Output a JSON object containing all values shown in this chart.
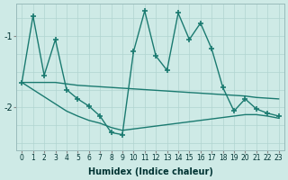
{
  "xlabel": "Humidex (Indice chaleur)",
  "bg_color": "#ceeae6",
  "line_color": "#1a7a70",
  "grid_color_v": "#b0d4d0",
  "grid_color_h": "#b0d4d0",
  "x_ticks": [
    0,
    1,
    2,
    3,
    4,
    5,
    6,
    7,
    8,
    9,
    10,
    11,
    12,
    13,
    14,
    15,
    16,
    17,
    18,
    19,
    20,
    21,
    22,
    23
  ],
  "y_ticks": [
    -1,
    -2
  ],
  "ylim": [
    -2.6,
    -0.55
  ],
  "xlim": [
    -0.5,
    23.5
  ],
  "line1_x": [
    0,
    1,
    2,
    3,
    4,
    5,
    6,
    7,
    8,
    9,
    10,
    11,
    12,
    13,
    14,
    15,
    16,
    17,
    18,
    19,
    20,
    21,
    22,
    23
  ],
  "line1_y": [
    -1.65,
    -0.72,
    -1.55,
    -1.05,
    -1.75,
    -1.88,
    -1.98,
    -2.12,
    -2.35,
    -2.38,
    -1.22,
    -0.65,
    -1.28,
    -1.48,
    -0.68,
    -1.05,
    -0.82,
    -1.18,
    -1.72,
    -2.05,
    -1.88,
    -2.02,
    -2.08,
    -2.12
  ],
  "line2_x": [
    0,
    1,
    2,
    3,
    4,
    5,
    6,
    7,
    8,
    9,
    10,
    11,
    12,
    13,
    14,
    15,
    16,
    17,
    18,
    19,
    20,
    21,
    22,
    23
  ],
  "line2_y": [
    -1.65,
    -1.65,
    -1.65,
    -1.65,
    -1.67,
    -1.69,
    -1.7,
    -1.71,
    -1.72,
    -1.73,
    -1.74,
    -1.75,
    -1.76,
    -1.77,
    -1.78,
    -1.79,
    -1.8,
    -1.81,
    -1.82,
    -1.83,
    -1.84,
    -1.86,
    -1.87,
    -1.88
  ],
  "line3_x": [
    0,
    1,
    2,
    3,
    4,
    5,
    6,
    7,
    8,
    9,
    10,
    11,
    12,
    13,
    14,
    15,
    16,
    17,
    18,
    19,
    20,
    21,
    22,
    23
  ],
  "line3_y": [
    -1.65,
    -1.75,
    -1.85,
    -1.95,
    -2.05,
    -2.12,
    -2.18,
    -2.22,
    -2.28,
    -2.32,
    -2.3,
    -2.28,
    -2.26,
    -2.24,
    -2.22,
    -2.2,
    -2.18,
    -2.16,
    -2.14,
    -2.12,
    -2.1,
    -2.1,
    -2.12,
    -2.15
  ]
}
